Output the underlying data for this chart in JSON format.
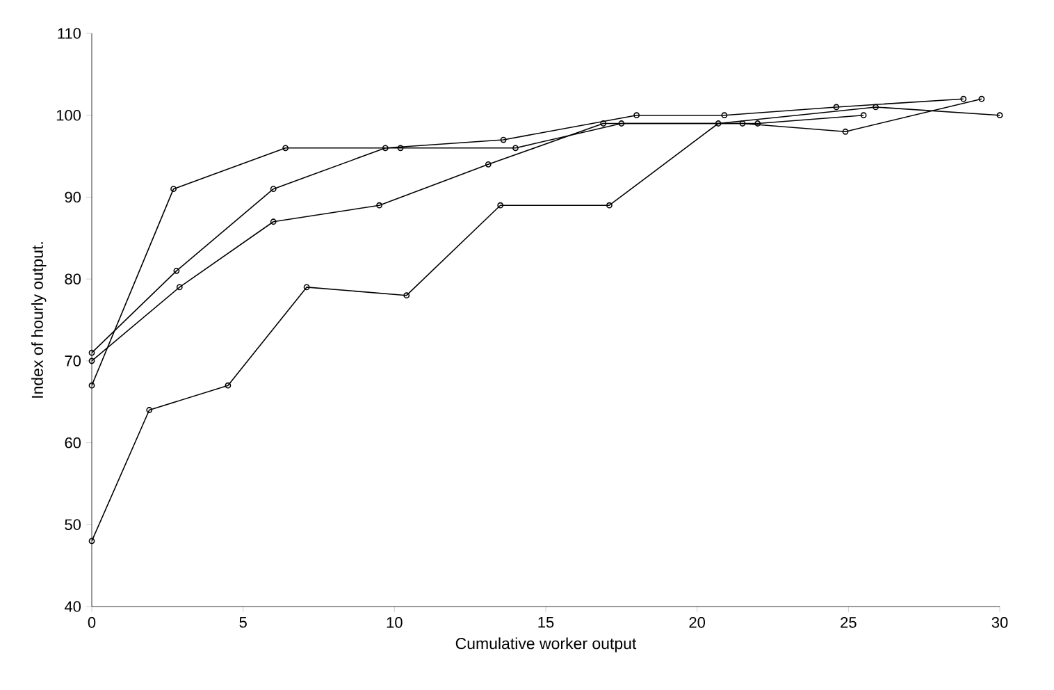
{
  "chart_data": {
    "type": "line",
    "xlabel": "Cumulative worker output",
    "ylabel": "Index of hourly output.",
    "xlim": [
      0,
      30
    ],
    "ylim": [
      40,
      110
    ],
    "xticks": [
      0,
      5,
      10,
      15,
      20,
      25,
      30
    ],
    "yticks": [
      40,
      50,
      60,
      70,
      80,
      90,
      100,
      110
    ],
    "grid": false,
    "marker": "circle",
    "line_style": "solid",
    "series": [
      {
        "color": "#000000",
        "x": [
          0,
          2.7,
          6.4,
          10.2,
          14,
          17.5,
          21.5,
          24.9,
          29.4
        ],
        "values": [
          67,
          91,
          96,
          96,
          96,
          99,
          99,
          98,
          102
        ]
      },
      {
        "color": "#000000",
        "x": [
          0,
          2.8,
          6,
          9.7,
          13.6,
          18,
          20.9,
          24.6,
          28.8
        ],
        "values": [
          71,
          81,
          91,
          96,
          97,
          100,
          100,
          101,
          102
        ]
      },
      {
        "color": "#000000",
        "x": [
          0,
          2.9,
          6,
          9.5,
          13.1,
          16.9,
          22,
          25.5
        ],
        "values": [
          70,
          79,
          87,
          89,
          94,
          99,
          99,
          100
        ]
      },
      {
        "color": "#000000",
        "x": [
          0,
          1.9,
          4.5,
          7.1,
          10.4,
          13.5,
          17.1,
          20.7,
          25.9,
          30
        ],
        "values": [
          48,
          64,
          67,
          79,
          78,
          89,
          89,
          99,
          101,
          100
        ]
      }
    ]
  }
}
